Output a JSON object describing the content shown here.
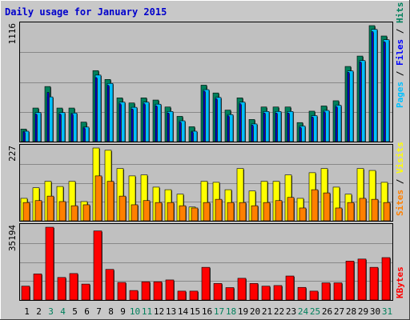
{
  "title": "Daily usage for January 2015",
  "colors": {
    "background": "#c8c8c8",
    "panel": "#c0c0c0",
    "title": "#0000cc",
    "hits": "#00805c",
    "files": "#0000ff",
    "pages": "#00c0ff",
    "visits": "#ffff00",
    "sites": "#ff8000",
    "kbytes": "#ff0000",
    "weekend_day": "#00805c"
  },
  "chart_data": [
    {
      "type": "bar",
      "panel": "hits-files-pages",
      "y_max_label": "1116",
      "ylim": [
        0,
        1116
      ],
      "legend": {
        "pages": "Pages",
        "files": "Files",
        "hits": "Hits",
        "separator": " / "
      },
      "categories": [
        "1",
        "2",
        "3",
        "4",
        "5",
        "6",
        "7",
        "8",
        "9",
        "10",
        "11",
        "12",
        "13",
        "14",
        "15",
        "16",
        "17",
        "18",
        "19",
        "20",
        "21",
        "22",
        "23",
        "24",
        "25",
        "26",
        "27",
        "28",
        "29",
        "30",
        "31"
      ],
      "series": [
        {
          "name": "Hits",
          "values": [
            121,
            323,
            530,
            323,
            323,
            188,
            683,
            598,
            421,
            372,
            421,
            400,
            333,
            243,
            143,
            543,
            468,
            303,
            421,
            213,
            333,
            333,
            333,
            183,
            293,
            343,
            393,
            723,
            823,
            1116,
            1016
          ]
        },
        {
          "name": "Files",
          "values": [
            93,
            265,
            473,
            265,
            265,
            132,
            616,
            541,
            364,
            314,
            364,
            344,
            275,
            188,
            93,
            486,
            412,
            248,
            364,
            158,
            275,
            275,
            275,
            138,
            237,
            286,
            336,
            666,
            766,
            1058,
            960
          ]
        },
        {
          "name": "Pages",
          "values": [
            100,
            280,
            430,
            280,
            275,
            140,
            640,
            560,
            380,
            330,
            380,
            360,
            290,
            200,
            100,
            500,
            425,
            260,
            380,
            170,
            290,
            290,
            290,
            150,
            250,
            300,
            350,
            680,
            780,
            1080,
            980
          ]
        }
      ]
    },
    {
      "type": "bar",
      "panel": "visits-sites",
      "y_max_label": "227",
      "ylim": [
        0,
        227
      ],
      "legend": {
        "sites": "Sites",
        "visits": "Visits",
        "separator": " / "
      },
      "categories": [
        "1",
        "2",
        "3",
        "4",
        "5",
        "6",
        "7",
        "8",
        "9",
        "10",
        "11",
        "12",
        "13",
        "14",
        "15",
        "16",
        "17",
        "18",
        "19",
        "20",
        "21",
        "22",
        "23",
        "24",
        "25",
        "26",
        "27",
        "28",
        "29",
        "30",
        "31"
      ],
      "series": [
        {
          "name": "Visits",
          "values": [
            70,
            103,
            123,
            107,
            123,
            60,
            227,
            220,
            163,
            140,
            143,
            105,
            97,
            83,
            43,
            123,
            120,
            97,
            163,
            93,
            123,
            123,
            143,
            70,
            150,
            163,
            105,
            83,
            163,
            157,
            120
          ]
        },
        {
          "name": "Sites",
          "values": [
            57,
            63,
            77,
            60,
            47,
            50,
            140,
            123,
            77,
            50,
            63,
            57,
            57,
            47,
            40,
            57,
            67,
            57,
            57,
            47,
            57,
            63,
            73,
            40,
            97,
            87,
            40,
            57,
            70,
            67,
            57
          ]
        }
      ]
    },
    {
      "type": "bar",
      "panel": "kbytes",
      "y_max_label": "35194",
      "ylim": [
        0,
        35194
      ],
      "legend": {
        "kbytes": "KBytes"
      },
      "categories": [
        "1",
        "2",
        "3",
        "4",
        "5",
        "6",
        "7",
        "8",
        "9",
        "10",
        "11",
        "12",
        "13",
        "14",
        "15",
        "16",
        "17",
        "18",
        "19",
        "20",
        "21",
        "22",
        "23",
        "24",
        "25",
        "26",
        "27",
        "28",
        "29",
        "30",
        "31"
      ],
      "series": [
        {
          "name": "KBytes",
          "values": [
            6700,
            12600,
            35194,
            10900,
            12800,
            7700,
            33400,
            14800,
            8500,
            4600,
            8800,
            8800,
            9700,
            4300,
            4300,
            15800,
            8000,
            6000,
            10500,
            8000,
            6700,
            7000,
            11600,
            6100,
            4300,
            8300,
            8300,
            18800,
            19800,
            15800,
            20500
          ]
        }
      ]
    }
  ],
  "x_axis": {
    "labels": [
      "1",
      "2",
      "3",
      "4",
      "5",
      "6",
      "7",
      "8",
      "9",
      "10",
      "11",
      "12",
      "13",
      "14",
      "15",
      "16",
      "17",
      "18",
      "19",
      "20",
      "21",
      "22",
      "23",
      "24",
      "25",
      "26",
      "27",
      "28",
      "29",
      "30",
      "31"
    ],
    "weekend_days": [
      "3",
      "4",
      "10",
      "11",
      "17",
      "18",
      "24",
      "25",
      "31"
    ]
  }
}
